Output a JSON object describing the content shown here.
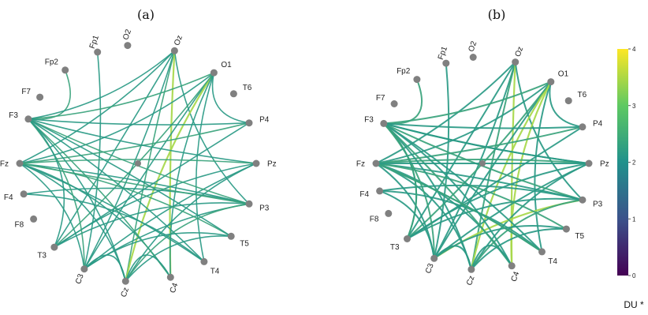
{
  "panels": [
    {
      "label": "(a)",
      "nodes": [
        "Fp1",
        "O2",
        "Oz",
        "O1",
        "T6",
        "P4",
        "Pz",
        "P3",
        "T5",
        "T4",
        "C4",
        "Cz",
        "C3",
        "T3",
        "F8",
        "F4",
        "Fz",
        "F3",
        "F7",
        "Fp2"
      ],
      "edges": [
        [
          "Fp2",
          "F3"
        ],
        [
          "Fp1",
          "C3"
        ],
        [
          "Oz",
          "Fz"
        ],
        [
          "Oz",
          "C3"
        ],
        [
          "Oz",
          "Cz"
        ],
        [
          "Oz",
          "T3"
        ],
        [
          "Oz",
          "C4"
        ],
        [
          "Oz",
          "P3"
        ],
        [
          "O1",
          "F3"
        ],
        [
          "O1",
          "Fz"
        ],
        [
          "O1",
          "C3"
        ],
        [
          "O1",
          "Cz"
        ],
        [
          "O1",
          "T3"
        ],
        [
          "O1",
          "T4"
        ],
        [
          "O1",
          "C4"
        ],
        [
          "O1",
          "P4"
        ],
        [
          "P4",
          "Fz"
        ],
        [
          "P4",
          "F3"
        ],
        [
          "P4",
          "T3"
        ],
        [
          "Pz",
          "F3"
        ],
        [
          "Pz",
          "Fz"
        ],
        [
          "Pz",
          "C3"
        ],
        [
          "Pz",
          "Cz"
        ],
        [
          "Pz",
          "T3"
        ],
        [
          "P3",
          "F3"
        ],
        [
          "P3",
          "Fz"
        ],
        [
          "P3",
          "F4"
        ],
        [
          "P3",
          "C3"
        ],
        [
          "P3",
          "Cz"
        ],
        [
          "P3",
          "T3"
        ],
        [
          "T5",
          "Cz"
        ],
        [
          "T5",
          "C3"
        ],
        [
          "T5",
          "Fz"
        ],
        [
          "T4",
          "Fz"
        ],
        [
          "T4",
          "F3"
        ],
        [
          "C4",
          "Fz"
        ],
        [
          "C4",
          "F3"
        ],
        [
          "Cz",
          "F3"
        ],
        [
          "Cz",
          "Fz"
        ],
        [
          "C3",
          "Fz"
        ],
        [
          "C3",
          "F3"
        ],
        [
          "T3",
          "F3"
        ],
        [
          "F4",
          "T4"
        ],
        [
          "F3",
          "T5"
        ],
        [
          "Fz",
          "P3"
        ],
        [
          "F3",
          "Oz"
        ],
        [
          "Cz",
          "C3"
        ],
        [
          "C4",
          "Cz"
        ]
      ],
      "strong_edges": [
        [
          "Oz",
          "C4"
        ],
        [
          "Fz",
          "T3"
        ],
        [
          "O1",
          "Cz"
        ],
        [
          "P3",
          "T4"
        ]
      ]
    },
    {
      "label": "(b)",
      "nodes": [
        "Fp1",
        "O2",
        "Oz",
        "O1",
        "T6",
        "P4",
        "Pz",
        "P3",
        "T5",
        "T4",
        "C4",
        "Cz",
        "C3",
        "T3",
        "F8",
        "F4",
        "Fz",
        "F3",
        "F7",
        "Fp2"
      ],
      "edges": [
        [
          "Fp2",
          "F3"
        ],
        [
          "Fp1",
          "C3"
        ],
        [
          "Oz",
          "Fz"
        ],
        [
          "Oz",
          "C3"
        ],
        [
          "Oz",
          "Cz"
        ],
        [
          "Oz",
          "T3"
        ],
        [
          "Oz",
          "C4"
        ],
        [
          "Oz",
          "P3"
        ],
        [
          "O1",
          "F3"
        ],
        [
          "O1",
          "Fz"
        ],
        [
          "O1",
          "C3"
        ],
        [
          "O1",
          "Cz"
        ],
        [
          "O1",
          "T3"
        ],
        [
          "O1",
          "T4"
        ],
        [
          "O1",
          "C4"
        ],
        [
          "O1",
          "P4"
        ],
        [
          "P4",
          "Fz"
        ],
        [
          "P4",
          "F3"
        ],
        [
          "P4",
          "T3"
        ],
        [
          "Pz",
          "F3"
        ],
        [
          "Pz",
          "Fz"
        ],
        [
          "Pz",
          "C3"
        ],
        [
          "Pz",
          "Cz"
        ],
        [
          "Pz",
          "T3"
        ],
        [
          "P3",
          "F3"
        ],
        [
          "P3",
          "Fz"
        ],
        [
          "P3",
          "F4"
        ],
        [
          "P3",
          "C3"
        ],
        [
          "P3",
          "Cz"
        ],
        [
          "P3",
          "T3"
        ],
        [
          "T5",
          "Cz"
        ],
        [
          "T5",
          "C3"
        ],
        [
          "T5",
          "Fz"
        ],
        [
          "T4",
          "Fz"
        ],
        [
          "T4",
          "F3"
        ],
        [
          "C4",
          "Fz"
        ],
        [
          "C4",
          "F3"
        ],
        [
          "Cz",
          "F3"
        ],
        [
          "Cz",
          "Fz"
        ],
        [
          "C3",
          "Fz"
        ],
        [
          "C3",
          "F3"
        ],
        [
          "T3",
          "F3"
        ],
        [
          "F4",
          "T4"
        ],
        [
          "F3",
          "Pz"
        ],
        [
          "Fz",
          "T4"
        ],
        [
          "F3",
          "C4"
        ],
        [
          "Cz",
          "C3"
        ],
        [
          "C4",
          "Cz"
        ],
        [
          "F3",
          "T3"
        ],
        [
          "Fz",
          "Pz"
        ],
        [
          "F4",
          "C3"
        ]
      ],
      "strong_edges": [
        [
          "Oz",
          "C4"
        ],
        [
          "Fz",
          "T3"
        ],
        [
          "O1",
          "Cz"
        ],
        [
          "P3",
          "C3"
        ],
        [
          "O1",
          "C4"
        ]
      ]
    }
  ],
  "colorbar": {
    "ticks": [
      "0",
      "1",
      "2",
      "3",
      "4"
    ],
    "unit": "DU *",
    "colors": [
      "#440154",
      "#3b528b",
      "#21918c",
      "#5ec962",
      "#fde725"
    ]
  },
  "colors": {
    "node": "#808080",
    "edge": "#2a9a86",
    "edge_alt": "#3aa37c",
    "edge_strong": "#a7d84a"
  }
}
